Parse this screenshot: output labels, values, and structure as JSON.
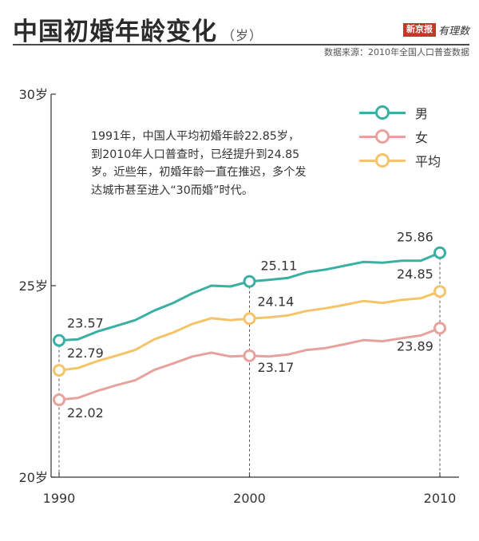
{
  "header": {
    "title": "中国初婚年龄变化",
    "title_unit": "（岁）",
    "logo_badge": "新京报",
    "logo_script": "有理数",
    "source": "数据来源：2010年全国人口普查数据"
  },
  "annotation": "1991年，中国人平均初婚年龄22.85岁，到2010年人口普查时，已经提升到24.85岁。近些年，初婚年龄一直在推迟，多个发达城市甚至进入“30而婚”时代。",
  "colors": {
    "male": "#3aafa3",
    "female": "#e8a29d",
    "average": "#f5c468",
    "axis": "#333333"
  },
  "chart_data": {
    "type": "line",
    "x": [
      1990,
      1991,
      1992,
      1993,
      1994,
      1995,
      1996,
      1997,
      1998,
      1999,
      2000,
      2001,
      2002,
      2003,
      2004,
      2005,
      2006,
      2007,
      2008,
      2009,
      2010
    ],
    "xticks": [
      "1990",
      "2000",
      "2010"
    ],
    "yticks": [
      "20岁",
      "25岁",
      "30岁"
    ],
    "ylim": [
      20,
      30
    ],
    "series": [
      {
        "name": "男",
        "color_key": "male",
        "values": [
          23.57,
          23.6,
          23.8,
          23.95,
          24.1,
          24.35,
          24.55,
          24.8,
          25.0,
          24.98,
          25.11,
          25.15,
          25.2,
          25.35,
          25.42,
          25.52,
          25.62,
          25.6,
          25.65,
          25.65,
          25.86
        ],
        "labels": [
          {
            "x": 1990,
            "text": "23.57"
          },
          {
            "x": 2000,
            "text": "25.11"
          },
          {
            "x": 2010,
            "text": "25.86"
          }
        ]
      },
      {
        "name": "女",
        "color_key": "female",
        "values": [
          22.02,
          22.07,
          22.25,
          22.4,
          22.53,
          22.8,
          22.97,
          23.15,
          23.25,
          23.15,
          23.17,
          23.15,
          23.2,
          23.32,
          23.37,
          23.47,
          23.58,
          23.55,
          23.63,
          23.7,
          23.89
        ],
        "labels": [
          {
            "x": 1990,
            "text": "22.02"
          },
          {
            "x": 2000,
            "text": "23.17"
          },
          {
            "x": 2010,
            "text": "23.89"
          }
        ]
      },
      {
        "name": "平均",
        "color_key": "average",
        "values": [
          22.79,
          22.85,
          23.03,
          23.17,
          23.32,
          23.6,
          23.78,
          24.0,
          24.15,
          24.1,
          24.14,
          24.17,
          24.22,
          24.34,
          24.41,
          24.5,
          24.6,
          24.55,
          24.63,
          24.67,
          24.85
        ],
        "labels": [
          {
            "x": 1990,
            "text": "22.79"
          },
          {
            "x": 2000,
            "text": "24.14"
          },
          {
            "x": 2010,
            "text": "24.85"
          }
        ]
      }
    ]
  }
}
